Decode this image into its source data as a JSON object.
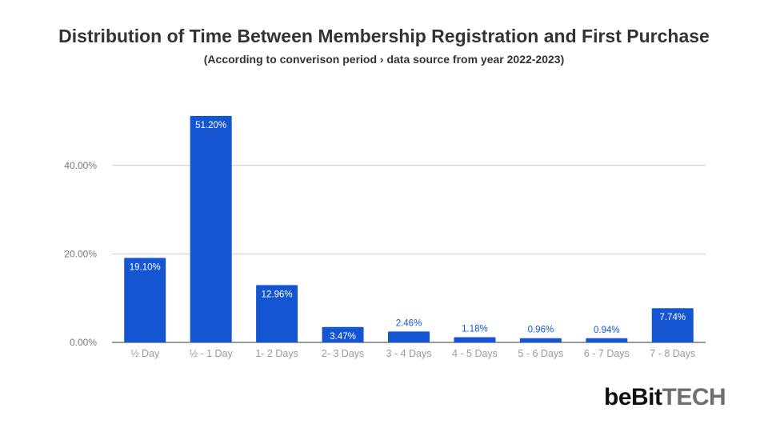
{
  "chart_data": {
    "type": "bar",
    "title": "Distribution of Time Between Membership Registration and First Purchase",
    "subtitle": "(According to converison period › data source from year 2022-2023)",
    "xlabel": "",
    "ylabel": "",
    "categories": [
      "½ Day",
      "½ - 1 Day",
      "1- 2 Days",
      "2- 3 Days",
      "3 - 4 Days",
      "4 - 5 Days",
      "5 - 6 Days",
      "6 - 7 Days",
      "7 - 8 Days"
    ],
    "values": [
      19.1,
      51.2,
      12.96,
      3.47,
      2.46,
      1.18,
      0.96,
      0.94,
      7.74
    ],
    "data_labels": [
      "19.10%",
      "51.20%",
      "12.96%",
      "3.47%",
      "2.46%",
      "1.18%",
      "0.96%",
      "0.94%",
      "7.74%"
    ],
    "y_ticks": [
      0,
      20,
      40
    ],
    "y_tick_labels": [
      "0.00%",
      "20.00%",
      "40.00%"
    ],
    "ylim": [
      0,
      55
    ],
    "grid": true,
    "bar_color": "#1456d2"
  },
  "brand": {
    "part1": "beBit",
    "part2": "TECH"
  }
}
